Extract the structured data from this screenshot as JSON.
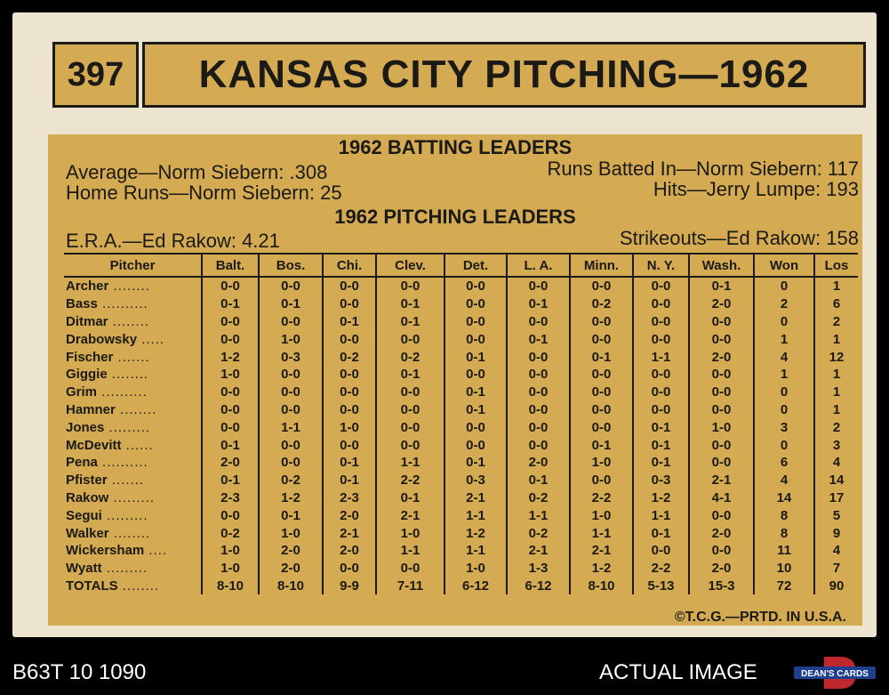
{
  "card": {
    "number": "397",
    "title": "KANSAS CITY PITCHING—1962",
    "batting_header": "1962 BATTING LEADERS",
    "batting_leaders": {
      "average": "Average—Norm Siebern: .308",
      "rbi": "Runs Batted In—Norm Siebern: 117",
      "hr": "Home Runs—Norm Siebern: 25",
      "hits": "Hits—Jerry Lumpe: 193"
    },
    "pitching_header": "1962 PITCHING LEADERS",
    "pitching_leaders": {
      "era": "E.R.A.—Ed Rakow: 4.21",
      "strikeouts": "Strikeouts—Ed Rakow: 158"
    },
    "table": {
      "headers": [
        "Pitcher",
        "Balt.",
        "Bos.",
        "Chi.",
        "Clev.",
        "Det.",
        "L. A.",
        "Minn.",
        "N. Y.",
        "Wash.",
        "Won",
        "Los"
      ],
      "rows": [
        [
          "Archer",
          "0-0",
          "0-0",
          "0-0",
          "0-0",
          "0-0",
          "0-0",
          "0-0",
          "0-0",
          "0-1",
          "0",
          "1"
        ],
        [
          "Bass",
          "0-1",
          "0-1",
          "0-0",
          "0-1",
          "0-0",
          "0-1",
          "0-2",
          "0-0",
          "2-0",
          "2",
          "6"
        ],
        [
          "Ditmar",
          "0-0",
          "0-0",
          "0-1",
          "0-1",
          "0-0",
          "0-0",
          "0-0",
          "0-0",
          "0-0",
          "0",
          "2"
        ],
        [
          "Drabowsky",
          "0-0",
          "1-0",
          "0-0",
          "0-0",
          "0-0",
          "0-1",
          "0-0",
          "0-0",
          "0-0",
          "1",
          "1"
        ],
        [
          "Fischer",
          "1-2",
          "0-3",
          "0-2",
          "0-2",
          "0-1",
          "0-0",
          "0-1",
          "1-1",
          "2-0",
          "4",
          "12"
        ],
        [
          "Giggie",
          "1-0",
          "0-0",
          "0-0",
          "0-1",
          "0-0",
          "0-0",
          "0-0",
          "0-0",
          "0-0",
          "1",
          "1"
        ],
        [
          "Grim",
          "0-0",
          "0-0",
          "0-0",
          "0-0",
          "0-1",
          "0-0",
          "0-0",
          "0-0",
          "0-0",
          "0",
          "1"
        ],
        [
          "Hamner",
          "0-0",
          "0-0",
          "0-0",
          "0-0",
          "0-1",
          "0-0",
          "0-0",
          "0-0",
          "0-0",
          "0",
          "1"
        ],
        [
          "Jones",
          "0-0",
          "1-1",
          "1-0",
          "0-0",
          "0-0",
          "0-0",
          "0-0",
          "0-1",
          "1-0",
          "3",
          "2"
        ],
        [
          "McDevitt",
          "0-1",
          "0-0",
          "0-0",
          "0-0",
          "0-0",
          "0-0",
          "0-1",
          "0-1",
          "0-0",
          "0",
          "3"
        ],
        [
          "Pena",
          "2-0",
          "0-0",
          "0-1",
          "1-1",
          "0-1",
          "2-0",
          "1-0",
          "0-1",
          "0-0",
          "6",
          "4"
        ],
        [
          "Pfister",
          "0-1",
          "0-2",
          "0-1",
          "2-2",
          "0-3",
          "0-1",
          "0-0",
          "0-3",
          "2-1",
          "4",
          "14"
        ],
        [
          "Rakow",
          "2-3",
          "1-2",
          "2-3",
          "0-1",
          "2-1",
          "0-2",
          "2-2",
          "1-2",
          "4-1",
          "14",
          "17"
        ],
        [
          "Segui",
          "0-0",
          "0-1",
          "2-0",
          "2-1",
          "1-1",
          "1-1",
          "1-0",
          "1-1",
          "0-0",
          "8",
          "5"
        ],
        [
          "Walker",
          "0-2",
          "1-0",
          "2-1",
          "1-0",
          "1-2",
          "0-2",
          "1-1",
          "0-1",
          "2-0",
          "8",
          "9"
        ],
        [
          "Wickersham",
          "1-0",
          "2-0",
          "2-0",
          "1-1",
          "1-1",
          "2-1",
          "2-1",
          "0-0",
          "0-0",
          "11",
          "4"
        ],
        [
          "Wyatt",
          "1-0",
          "2-0",
          "0-0",
          "0-0",
          "1-0",
          "1-3",
          "1-2",
          "2-2",
          "2-0",
          "10",
          "7"
        ],
        [
          "TOTALS",
          "8-10",
          "8-10",
          "9-9",
          "7-11",
          "6-12",
          "6-12",
          "8-10",
          "5-13",
          "15-3",
          "72",
          "90"
        ]
      ]
    },
    "copyright": "©T.C.G.—PRTD. IN U.S.A."
  },
  "overlay": {
    "inventory_id": "B63T 10 1090",
    "actual_image": "ACTUAL IMAGE",
    "logo_text": "DEAN'S CARDS"
  },
  "colors": {
    "card_stock": "#ece4cf",
    "gold": "#d4aa52",
    "ink": "#1c1a16",
    "logo_red": "#c0282d",
    "logo_blue": "#1f3f8f"
  }
}
